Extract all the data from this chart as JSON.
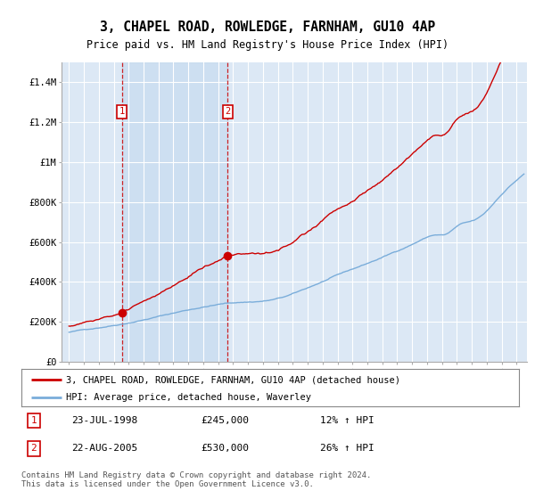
{
  "title": "3, CHAPEL ROAD, ROWLEDGE, FARNHAM, GU10 4AP",
  "subtitle": "Price paid vs. HM Land Registry's House Price Index (HPI)",
  "legend_line1": "3, CHAPEL ROAD, ROWLEDGE, FARNHAM, GU10 4AP (detached house)",
  "legend_line2": "HPI: Average price, detached house, Waverley",
  "footer": "Contains HM Land Registry data © Crown copyright and database right 2024.\nThis data is licensed under the Open Government Licence v3.0.",
  "purchase1": {
    "label": "1",
    "date": "23-JUL-1998",
    "price": "£245,000",
    "pct": "12%",
    "dir": "↑"
  },
  "purchase2": {
    "label": "2",
    "date": "22-AUG-2005",
    "price": "£530,000",
    "pct": "26%",
    "dir": "↑"
  },
  "red_color": "#cc0000",
  "blue_color": "#7aadda",
  "background_plot": "#dce8f5",
  "grid_color": "#ffffff",
  "hatch_color": "#c8d8e8",
  "ylim": [
    0,
    1500000
  ],
  "yticks": [
    0,
    200000,
    400000,
    600000,
    800000,
    1000000,
    1200000,
    1400000
  ],
  "ytick_labels": [
    "£0",
    "£200K",
    "£400K",
    "£600K",
    "£800K",
    "£1M",
    "£1.2M",
    "£1.4M"
  ],
  "xlim_start": 1994.5,
  "xlim_end": 2025.7,
  "purchase1_x": 1998.55,
  "purchase2_x": 2005.64,
  "hatch_start": 2024.5
}
